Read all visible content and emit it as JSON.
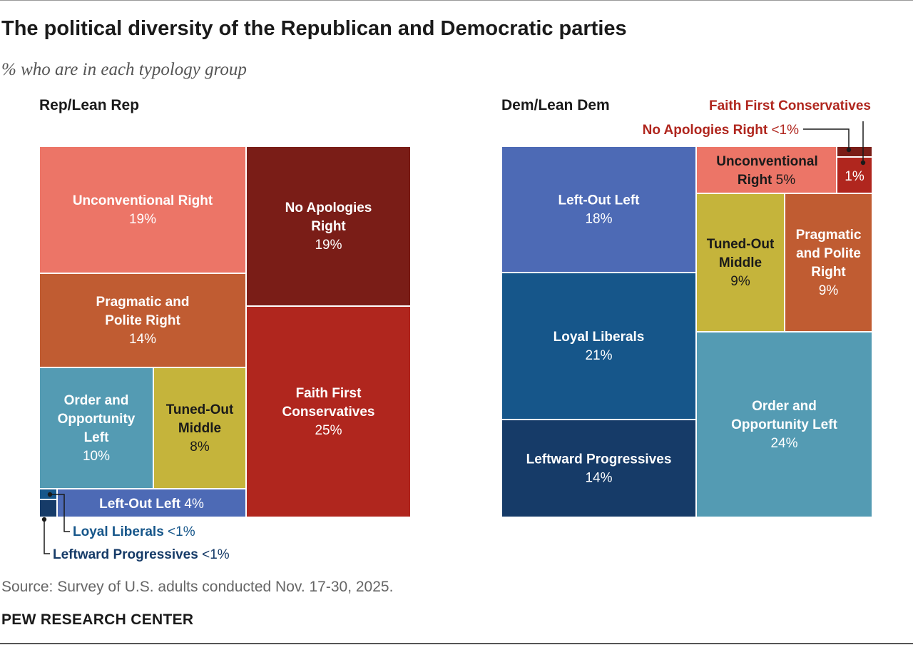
{
  "title": "The political diversity of the Republican and Democratic parties",
  "subtitle": "% who are in each typology group",
  "source": "Source: Survey of U.S. adults conducted Nov. 17-30, 2025.",
  "footer": "PEW RESEARCH CENTER",
  "colors": {
    "no_apologies_right": "#7a1d17",
    "faith_first_conservatives": "#b0261e",
    "unconventional_right": "#ec7567",
    "pragmatic_polite_right": "#c05c32",
    "tuned_out_middle": "#c5b43b",
    "order_opportunity_left": "#549bb3",
    "left_out_left": "#4d6ab5",
    "loyal_liberals": "#16568a",
    "leftward_progressives": "#163b68",
    "callout_red": "#b0261e",
    "callout_blue": "#16568a",
    "callout_navy": "#163b68"
  },
  "chart_data": [
    {
      "type": "treemap",
      "panel_title": "Rep/Lean Rep",
      "items": [
        {
          "id": "unconventional_right",
          "label": "Unconventional Right",
          "value_label": "19%",
          "value": 19
        },
        {
          "id": "no_apologies_right",
          "label": "No Apologies Right",
          "value_label": "19%",
          "value": 19
        },
        {
          "id": "pragmatic_polite_right",
          "label": "Pragmatic and Polite Right",
          "value_label": "14%",
          "value": 14
        },
        {
          "id": "faith_first_conservatives",
          "label": "Faith First Conservatives",
          "value_label": "25%",
          "value": 25
        },
        {
          "id": "order_opportunity_left",
          "label": "Order and Opportunity Left",
          "value_label": "10%",
          "value": 10
        },
        {
          "id": "tuned_out_middle",
          "label": "Tuned-Out Middle",
          "value_label": "8%",
          "value": 8
        },
        {
          "id": "left_out_left",
          "label": "Left-Out Left",
          "value_label": "4%",
          "value": 4
        },
        {
          "id": "loyal_liberals",
          "label": "Loyal Liberals",
          "value_label": "<1%",
          "value": 0.5
        },
        {
          "id": "leftward_progressives",
          "label": "Leftward Progressives",
          "value_label": "<1%",
          "value": 0.5
        }
      ]
    },
    {
      "type": "treemap",
      "panel_title": "Dem/Lean Dem",
      "items": [
        {
          "id": "left_out_left",
          "label": "Left-Out Left",
          "value_label": "18%",
          "value": 18
        },
        {
          "id": "loyal_liberals",
          "label": "Loyal Liberals",
          "value_label": "21%",
          "value": 21
        },
        {
          "id": "leftward_progressives",
          "label": "Leftward Progressives",
          "value_label": "14%",
          "value": 14
        },
        {
          "id": "unconventional_right",
          "label": "Unconventional Right",
          "value_label": "5%",
          "value": 5
        },
        {
          "id": "faith_first_conservatives",
          "label": "Faith First Conservatives",
          "value_label": "1%",
          "value": 1
        },
        {
          "id": "no_apologies_right",
          "label": "No Apologies Right",
          "value_label": "<1%",
          "value": 0.5
        },
        {
          "id": "tuned_out_middle",
          "label": "Tuned-Out Middle",
          "value_label": "9%",
          "value": 9
        },
        {
          "id": "pragmatic_polite_right",
          "label": "Pragmatic and Polite Right",
          "value_label": "9%",
          "value": 9
        },
        {
          "id": "order_opportunity_left",
          "label": "Order and Opportunity Left",
          "value_label": "24%",
          "value": 24
        }
      ]
    }
  ]
}
